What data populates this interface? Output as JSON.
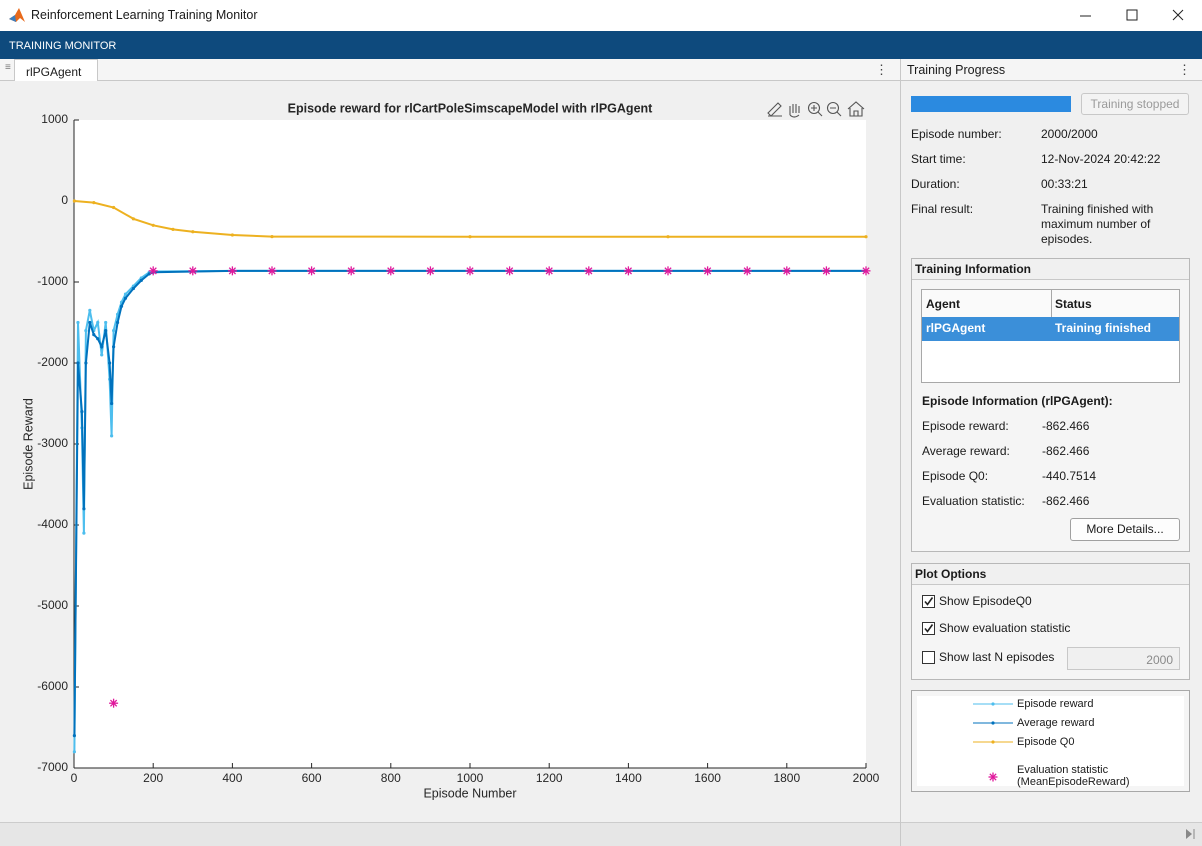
{
  "window": {
    "title": "Reinforcement Learning Training Monitor",
    "app_bar": "TRAINING MONITOR"
  },
  "tab": "rlPGAgent",
  "progress": {
    "title": "Training Progress",
    "button": "Training stopped",
    "fields": [
      {
        "label": "Episode number:",
        "value": "2000/2000"
      },
      {
        "label": "Start time:",
        "value": "12-Nov-2024 20:42:22"
      },
      {
        "label": "Duration:",
        "value": "00:33:21"
      },
      {
        "label": "Final result:",
        "value": "Training finished with maximum number of episodes."
      }
    ]
  },
  "training_information": {
    "title": "Training Information",
    "table": {
      "columns": [
        "Agent",
        "Status"
      ],
      "rows": [
        [
          "rlPGAgent",
          "Training finished"
        ]
      ]
    },
    "episode_information": {
      "title": "Episode Information (rlPGAgent):",
      "fields": [
        {
          "label": "Episode reward:",
          "value": "-862.466"
        },
        {
          "label": "Average reward:",
          "value": "-862.466"
        },
        {
          "label": "Episode Q0:",
          "value": "-440.7514"
        },
        {
          "label": "Evaluation statistic:",
          "value": "-862.466"
        }
      ]
    },
    "button": "More Details..."
  },
  "plot_options": {
    "title": "Plot Options",
    "options": [
      {
        "label": "Show EpisodeQ0",
        "checked": true
      },
      {
        "label": "Show evaluation statistic",
        "checked": true
      },
      {
        "label": "Show last N episodes",
        "checked": false
      }
    ],
    "last_n": "2000"
  },
  "chart_data": {
    "type": "line",
    "title": "Episode reward for rlCartPoleSimscapeModel with rlPGAgent",
    "xlabel": "Episode Number",
    "ylabel": "Episode Reward",
    "xlim": [
      0,
      2000
    ],
    "ylim": [
      -7000,
      1000
    ],
    "xticks": [
      0,
      200,
      400,
      600,
      800,
      1000,
      1200,
      1400,
      1600,
      1800,
      2000
    ],
    "yticks": [
      -7000,
      -6000,
      -5000,
      -4000,
      -3000,
      -2000,
      -1000,
      0,
      1000
    ],
    "grid": false,
    "series": [
      {
        "name": "Episode reward",
        "color": "#4dbeee",
        "marker": "dot",
        "line": true,
        "x": [
          1,
          10,
          20,
          25,
          30,
          40,
          50,
          60,
          70,
          80,
          90,
          95,
          100,
          110,
          120,
          130,
          150,
          170,
          190,
          200,
          400,
          600,
          800,
          1000,
          1200,
          1400,
          1600,
          1800,
          2000
        ],
        "values": [
          -6800,
          -1500,
          -2800,
          -4100,
          -1600,
          -1350,
          -1600,
          -1500,
          -1900,
          -1500,
          -2200,
          -2900,
          -1600,
          -1400,
          -1250,
          -1150,
          -1050,
          -950,
          -880,
          -870,
          -862.466,
          -862.466,
          -862.466,
          -862.466,
          -862.466,
          -862.466,
          -862.466,
          -862.466,
          -862.466
        ]
      },
      {
        "name": "Average reward",
        "color": "#0072bd",
        "marker": "dot",
        "line": true,
        "x": [
          1,
          10,
          20,
          25,
          30,
          40,
          50,
          60,
          70,
          80,
          90,
          95,
          100,
          110,
          120,
          130,
          150,
          170,
          190,
          200,
          400,
          600,
          800,
          1000,
          1200,
          1400,
          1600,
          1800,
          2000
        ],
        "values": [
          -6600,
          -2000,
          -2600,
          -3800,
          -2000,
          -1500,
          -1650,
          -1700,
          -1800,
          -1600,
          -2000,
          -2500,
          -1800,
          -1500,
          -1300,
          -1200,
          -1080,
          -980,
          -900,
          -880,
          -862.466,
          -862.466,
          -862.466,
          -862.466,
          -862.466,
          -862.466,
          -862.466,
          -862.466,
          -862.466
        ]
      },
      {
        "name": "Episode Q0",
        "color": "#edb120",
        "marker": "dot",
        "line": true,
        "x": [
          1,
          50,
          100,
          150,
          200,
          250,
          300,
          400,
          500,
          1000,
          1500,
          2000
        ],
        "values": [
          0,
          -20,
          -80,
          -220,
          -300,
          -350,
          -380,
          -420,
          -440,
          -440.7514,
          -440.7514,
          -440.7514
        ]
      },
      {
        "name": "Evaluation statistic (MeanEpisodeReward)",
        "color": "#e0189c",
        "marker": "asterisk",
        "line": false,
        "x": [
          100,
          200,
          300,
          400,
          500,
          600,
          700,
          800,
          900,
          1000,
          1100,
          1200,
          1300,
          1400,
          1500,
          1600,
          1700,
          1800,
          1900,
          2000
        ],
        "values": [
          -6200,
          -862.466,
          -862.466,
          -862.466,
          -862.466,
          -862.466,
          -862.466,
          -862.466,
          -862.466,
          -862.466,
          -862.466,
          -862.466,
          -862.466,
          -862.466,
          -862.466,
          -862.466,
          -862.466,
          -862.466,
          -862.466,
          -862.466
        ]
      }
    ]
  }
}
